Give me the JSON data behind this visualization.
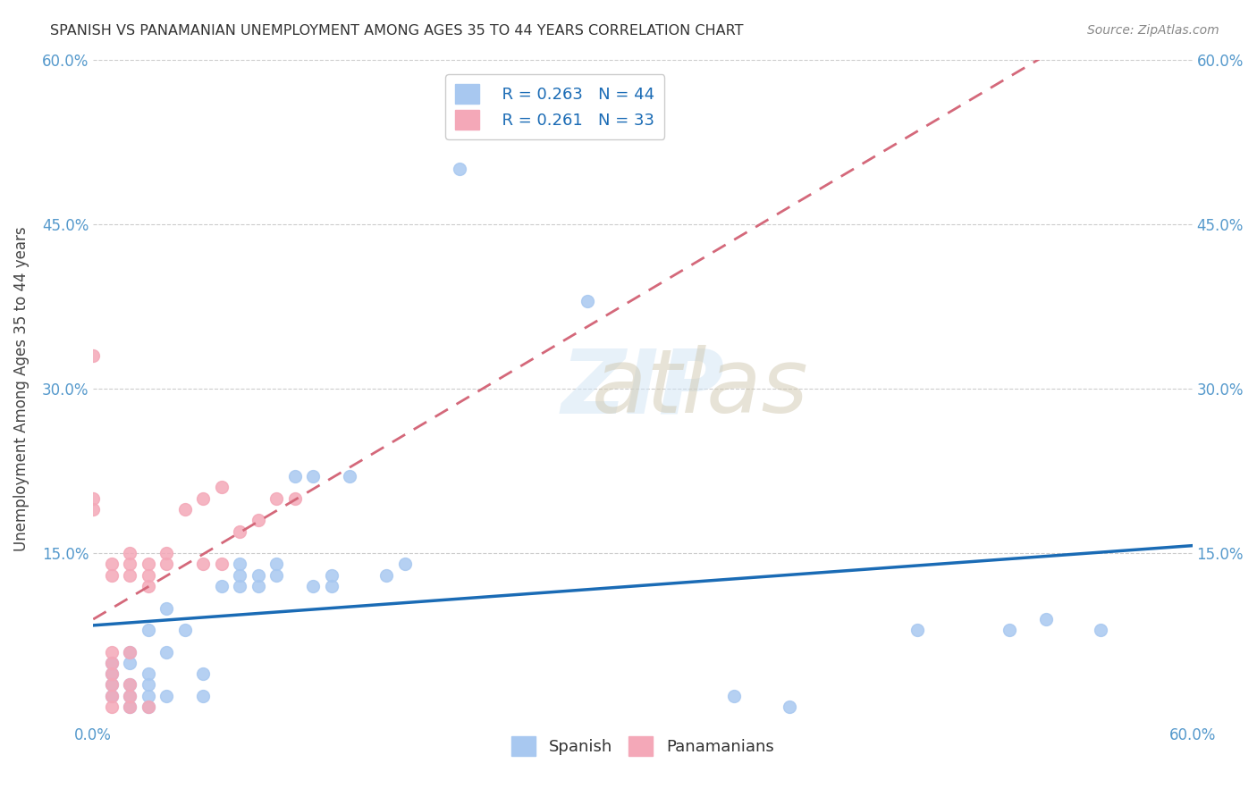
{
  "title": "SPANISH VS PANAMANIAN UNEMPLOYMENT AMONG AGES 35 TO 44 YEARS CORRELATION CHART",
  "source": "Source: ZipAtlas.com",
  "xlabel": "",
  "ylabel": "Unemployment Among Ages 35 to 44 years",
  "xlim": [
    0.0,
    0.6
  ],
  "ylim": [
    0.0,
    0.6
  ],
  "xtick_labels": [
    "0.0%",
    "60.0%"
  ],
  "ytick_labels": [
    "15.0%",
    "30.0%",
    "45.0%",
    "60.0%"
  ],
  "ytick_values": [
    0.15,
    0.3,
    0.45,
    0.6
  ],
  "xtick_values": [
    0.0,
    0.6
  ],
  "legend_r_spanish": "0.263",
  "legend_n_spanish": "44",
  "legend_r_panamanian": "0.261",
  "legend_n_panamanian": "33",
  "spanish_color": "#a8c8f0",
  "panamanian_color": "#f4a8b8",
  "trend_spanish_color": "#1a6bb5",
  "trend_panamanian_color": "#d4687a",
  "spanish_points": [
    [
      0.01,
      0.02
    ],
    [
      0.01,
      0.03
    ],
    [
      0.01,
      0.04
    ],
    [
      0.01,
      0.05
    ],
    [
      0.02,
      0.01
    ],
    [
      0.02,
      0.02
    ],
    [
      0.02,
      0.03
    ],
    [
      0.02,
      0.05
    ],
    [
      0.02,
      0.06
    ],
    [
      0.03,
      0.01
    ],
    [
      0.03,
      0.02
    ],
    [
      0.03,
      0.03
    ],
    [
      0.03,
      0.04
    ],
    [
      0.03,
      0.08
    ],
    [
      0.04,
      0.02
    ],
    [
      0.04,
      0.06
    ],
    [
      0.04,
      0.1
    ],
    [
      0.05,
      0.08
    ],
    [
      0.06,
      0.02
    ],
    [
      0.06,
      0.04
    ],
    [
      0.07,
      0.12
    ],
    [
      0.08,
      0.12
    ],
    [
      0.08,
      0.13
    ],
    [
      0.08,
      0.14
    ],
    [
      0.09,
      0.12
    ],
    [
      0.09,
      0.13
    ],
    [
      0.1,
      0.13
    ],
    [
      0.1,
      0.14
    ],
    [
      0.11,
      0.22
    ],
    [
      0.12,
      0.22
    ],
    [
      0.12,
      0.12
    ],
    [
      0.13,
      0.12
    ],
    [
      0.13,
      0.13
    ],
    [
      0.14,
      0.22
    ],
    [
      0.16,
      0.13
    ],
    [
      0.17,
      0.14
    ],
    [
      0.2,
      0.5
    ],
    [
      0.27,
      0.38
    ],
    [
      0.35,
      0.02
    ],
    [
      0.38,
      0.01
    ],
    [
      0.45,
      0.08
    ],
    [
      0.5,
      0.08
    ],
    [
      0.52,
      0.09
    ],
    [
      0.55,
      0.08
    ]
  ],
  "panamanian_points": [
    [
      0.0,
      0.33
    ],
    [
      0.01,
      0.01
    ],
    [
      0.01,
      0.02
    ],
    [
      0.01,
      0.03
    ],
    [
      0.01,
      0.04
    ],
    [
      0.01,
      0.05
    ],
    [
      0.01,
      0.06
    ],
    [
      0.01,
      0.13
    ],
    [
      0.01,
      0.14
    ],
    [
      0.02,
      0.01
    ],
    [
      0.02,
      0.02
    ],
    [
      0.02,
      0.03
    ],
    [
      0.02,
      0.06
    ],
    [
      0.02,
      0.13
    ],
    [
      0.02,
      0.14
    ],
    [
      0.02,
      0.15
    ],
    [
      0.03,
      0.01
    ],
    [
      0.03,
      0.12
    ],
    [
      0.03,
      0.13
    ],
    [
      0.03,
      0.14
    ],
    [
      0.04,
      0.14
    ],
    [
      0.04,
      0.15
    ],
    [
      0.05,
      0.19
    ],
    [
      0.06,
      0.2
    ],
    [
      0.06,
      0.14
    ],
    [
      0.07,
      0.14
    ],
    [
      0.07,
      0.21
    ],
    [
      0.08,
      0.17
    ],
    [
      0.09,
      0.18
    ],
    [
      0.1,
      0.2
    ],
    [
      0.11,
      0.2
    ],
    [
      0.0,
      0.19
    ],
    [
      0.0,
      0.2
    ]
  ]
}
